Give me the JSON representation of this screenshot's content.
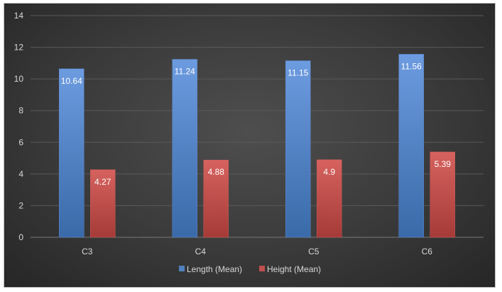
{
  "chart_data": {
    "type": "bar",
    "categories": [
      "C3",
      "C4",
      "C5",
      "C6"
    ],
    "series": [
      {
        "name": "Length (Mean)",
        "values": [
          10.64,
          11.24,
          11.15,
          11.56
        ],
        "color": "#4f81bd"
      },
      {
        "name": "Height (Mean)",
        "values": [
          4.27,
          4.88,
          4.9,
          5.39
        ],
        "color": "#c0504d"
      }
    ],
    "yticks": [
      "0",
      "2",
      "4",
      "6",
      "8",
      "10",
      "12",
      "14"
    ],
    "ylim": [
      0,
      14
    ],
    "grid": true,
    "legend_position": "bottom",
    "data_labels": true
  }
}
